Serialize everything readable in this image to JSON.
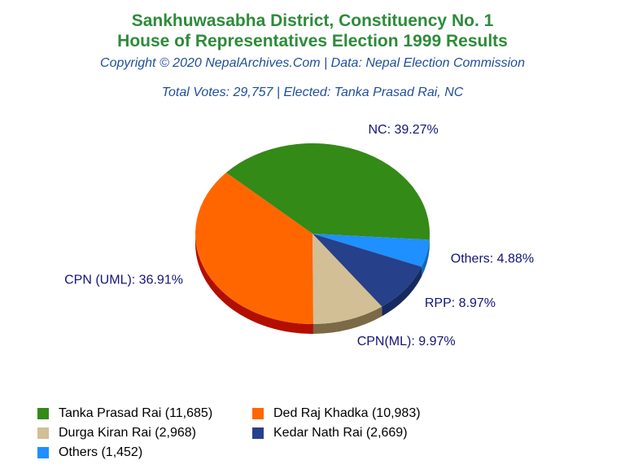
{
  "header": {
    "title_line1": "Sankhuwasabha District, Constituency No. 1",
    "title_line2": "House of Representatives Election 1999 Results",
    "copyright": "Copyright © 2020 NepalArchives.Com | Data: Nepal Election Commission",
    "summary": "Total Votes: 29,757 | Elected: Tanka Prasad Rai, NC"
  },
  "chart_data": {
    "type": "pie",
    "title": "Sankhuwasabha District, Constituency No. 1 House of Representatives Election 1999 Results",
    "slices": [
      {
        "party": "NC",
        "label": "NC: 39.27%",
        "percent": 39.27,
        "votes": 11685,
        "candidate": "Tanka Prasad Rai (11,685)",
        "color": "#338a17",
        "shade": "#1f5c0c"
      },
      {
        "party": "Others",
        "label": "Others: 4.88%",
        "percent": 4.88,
        "votes": 1452,
        "candidate": "Others (1,452)",
        "color": "#1e90ff",
        "shade": "#1466b8"
      },
      {
        "party": "RPP",
        "label": "RPP: 8.97%",
        "percent": 8.97,
        "votes": 2669,
        "candidate": "Kedar Nath Rai (2,669)",
        "color": "#26408a",
        "shade": "#172a5e"
      },
      {
        "party": "CPN(ML)",
        "label": "CPN(ML): 9.97%",
        "percent": 9.97,
        "votes": 2968,
        "candidate": "Durga Kiran Rai (2,968)",
        "color": "#d2bf96",
        "shade": "#7a6a45"
      },
      {
        "party": "CPN (UML)",
        "label": "CPN (UML): 36.91%",
        "percent": 36.91,
        "votes": 10983,
        "candidate": "Ded Raj Khadka (10,983)",
        "color": "#ff6600",
        "shade": "#b30f00"
      }
    ],
    "legend": {
      "placement": "bottom",
      "entries": [
        {
          "text": "Tanka Prasad Rai (11,685)",
          "color": "#338a17"
        },
        {
          "text": "Ded Raj Khadka (10,983)",
          "color": "#ff6600"
        },
        {
          "text": "Durga Kiran Rai (2,968)",
          "color": "#d2bf96"
        },
        {
          "text": "Kedar Nath Rai (2,669)",
          "color": "#26408a"
        },
        {
          "text": "Others (1,452)",
          "color": "#1e90ff"
        }
      ]
    }
  }
}
